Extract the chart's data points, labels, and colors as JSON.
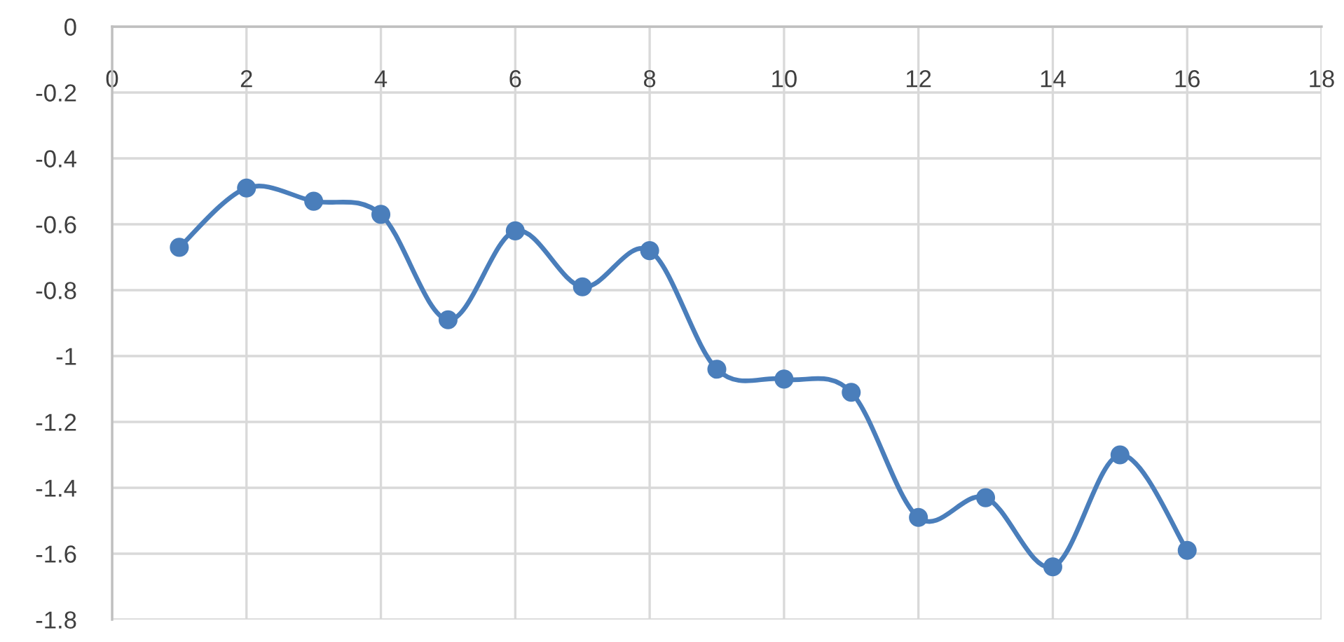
{
  "chart_data": {
    "type": "line",
    "x": [
      1,
      2,
      3,
      4,
      5,
      6,
      7,
      8,
      9,
      10,
      11,
      12,
      13,
      14,
      15,
      16
    ],
    "series": [
      {
        "color": "#4a7ebb",
        "values": [
          -0.67,
          -0.49,
          -0.53,
          -0.57,
          -0.89,
          -0.62,
          -0.79,
          -0.68,
          -1.04,
          -1.07,
          -1.11,
          -1.49,
          -1.43,
          -1.64,
          -1.3,
          -1.59
        ]
      }
    ],
    "xlim": [
      0,
      18
    ],
    "xticks": [
      0,
      2,
      4,
      6,
      8,
      10,
      12,
      14,
      16,
      18
    ],
    "ylim": [
      -1.8,
      0
    ],
    "yticks": [
      0,
      -0.2,
      -0.4,
      -0.6,
      -0.8,
      -1,
      -1.2,
      -1.4,
      -1.6,
      -1.8
    ],
    "grid": true,
    "marker": "circle",
    "line_style": "solid"
  }
}
